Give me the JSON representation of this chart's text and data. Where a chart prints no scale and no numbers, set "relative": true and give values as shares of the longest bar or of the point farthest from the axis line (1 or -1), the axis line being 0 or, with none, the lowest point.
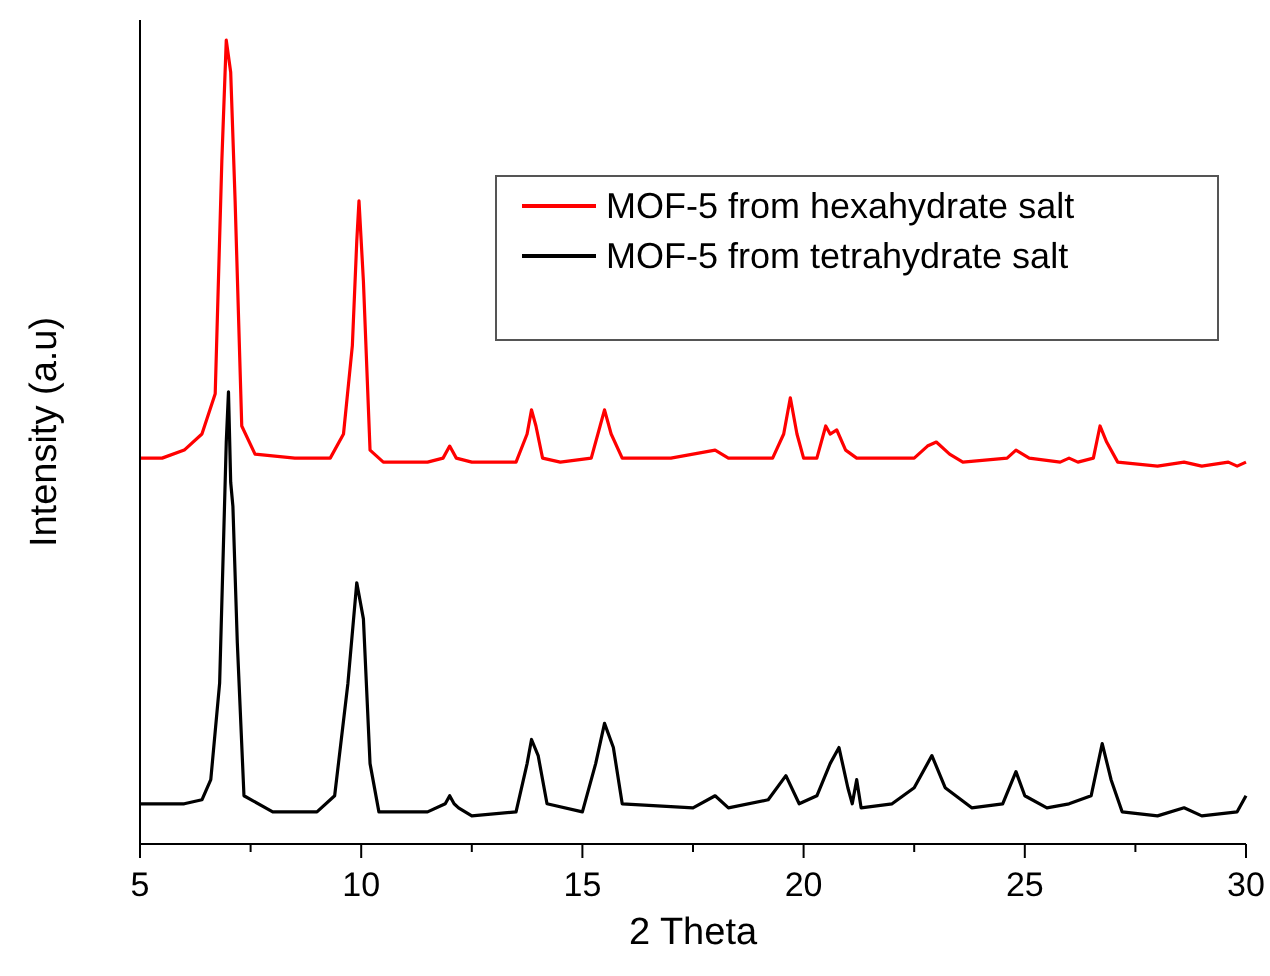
{
  "chart_data": {
    "type": "line",
    "xlabel": "2 Theta",
    "ylabel": "Intensity (a.u)",
    "relative": true,
    "legend": "top right",
    "grid": false,
    "line_style": "solid",
    "xlim": [
      5,
      30
    ],
    "xticks": [
      5,
      {
        "value": 7.5,
        "label": null
      },
      10,
      {
        "value": 12.5,
        "label": null
      },
      15,
      {
        "value": 17.5,
        "label": null
      },
      20,
      {
        "value": 22.5,
        "label": null
      },
      25,
      {
        "value": 27.5,
        "label": null
      },
      30
    ],
    "series": [
      {
        "name": "MOF-5 from hexahydrate salt",
        "color": "#ff0000",
        "x": [
          5.0,
          5.5,
          6.0,
          6.4,
          6.7,
          6.85,
          6.95,
          7.05,
          7.15,
          7.3,
          7.6,
          8.5,
          9.3,
          9.6,
          9.8,
          9.9,
          9.95,
          10.05,
          10.2,
          10.5,
          11.5,
          11.85,
          12.0,
          12.15,
          12.5,
          13.5,
          13.75,
          13.85,
          13.95,
          14.1,
          14.5,
          15.2,
          15.4,
          15.5,
          15.65,
          15.9,
          17.0,
          18.0,
          18.3,
          19.3,
          19.55,
          19.7,
          19.85,
          20.0,
          20.3,
          20.5,
          20.6,
          20.75,
          20.95,
          21.2,
          22.5,
          22.8,
          23.0,
          23.3,
          23.6,
          24.6,
          24.8,
          25.1,
          25.8,
          26.0,
          26.2,
          26.55,
          26.7,
          26.85,
          27.1,
          28.0,
          28.6,
          29.0,
          29.6,
          29.8,
          30.0
        ],
        "values": [
          0.48,
          0.48,
          0.49,
          0.51,
          0.56,
          0.85,
          1.0,
          0.96,
          0.8,
          0.52,
          0.485,
          0.48,
          0.48,
          0.51,
          0.62,
          0.75,
          0.8,
          0.7,
          0.49,
          0.475,
          0.475,
          0.48,
          0.495,
          0.48,
          0.475,
          0.475,
          0.51,
          0.54,
          0.52,
          0.48,
          0.475,
          0.48,
          0.52,
          0.54,
          0.51,
          0.48,
          0.48,
          0.49,
          0.48,
          0.48,
          0.51,
          0.555,
          0.51,
          0.48,
          0.48,
          0.52,
          0.51,
          0.515,
          0.49,
          0.48,
          0.48,
          0.495,
          0.5,
          0.485,
          0.475,
          0.48,
          0.49,
          0.48,
          0.475,
          0.48,
          0.475,
          0.48,
          0.52,
          0.5,
          0.475,
          0.47,
          0.475,
          0.47,
          0.475,
          0.47,
          0.475
        ]
      },
      {
        "name": "MOF-5 from tetrahydrate salt",
        "color": "#000000",
        "x": [
          5.0,
          6.0,
          6.4,
          6.6,
          6.8,
          6.95,
          7.0,
          7.05,
          7.1,
          7.2,
          7.35,
          8.0,
          9.0,
          9.4,
          9.7,
          9.9,
          10.05,
          10.2,
          10.4,
          11.5,
          11.9,
          12.0,
          12.1,
          12.2,
          12.5,
          13.5,
          13.75,
          13.85,
          14.0,
          14.2,
          15.0,
          15.3,
          15.5,
          15.7,
          15.9,
          17.5,
          18.0,
          18.3,
          19.2,
          19.6,
          19.9,
          20.3,
          20.6,
          20.8,
          21.0,
          21.1,
          21.2,
          21.3,
          22.0,
          22.5,
          22.9,
          23.2,
          23.8,
          24.5,
          24.8,
          25.0,
          25.5,
          26.0,
          26.5,
          26.75,
          26.95,
          27.2,
          28.0,
          28.6,
          29.0,
          29.8,
          30.0
        ],
        "values": [
          0.05,
          0.05,
          0.055,
          0.08,
          0.2,
          0.5,
          0.5625,
          0.45,
          0.42,
          0.25,
          0.06,
          0.04,
          0.04,
          0.06,
          0.2,
          0.325,
          0.28,
          0.1,
          0.04,
          0.04,
          0.05,
          0.06,
          0.05,
          0.045,
          0.035,
          0.04,
          0.1,
          0.13,
          0.11,
          0.05,
          0.04,
          0.1,
          0.15,
          0.12,
          0.05,
          0.045,
          0.06,
          0.045,
          0.055,
          0.085,
          0.05,
          0.06,
          0.1,
          0.12,
          0.07,
          0.05,
          0.08,
          0.045,
          0.05,
          0.07,
          0.11,
          0.07,
          0.045,
          0.05,
          0.09,
          0.06,
          0.045,
          0.05,
          0.06,
          0.125,
          0.08,
          0.04,
          0.035,
          0.045,
          0.035,
          0.04,
          0.06
        ]
      }
    ]
  }
}
